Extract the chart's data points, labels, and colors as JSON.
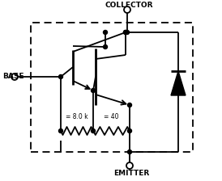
{
  "collector_label": "COLLECTOR",
  "base_label": "BASE",
  "emitter_label": "EMITTER",
  "r1_label": "= 8.0 k",
  "r2_label": "= 40",
  "bg_color": "#ffffff",
  "figsize": [
    2.74,
    2.24
  ],
  "dpi": 100
}
